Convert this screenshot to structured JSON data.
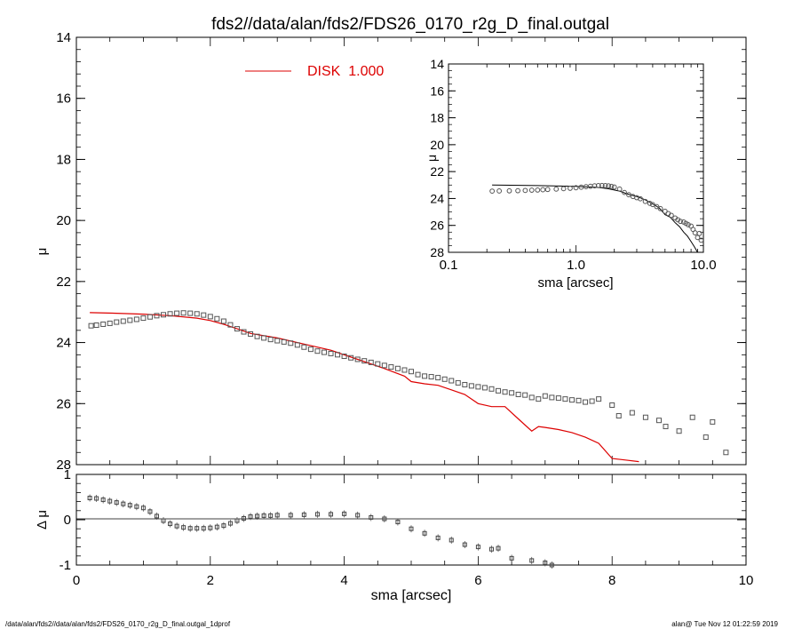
{
  "chart_data": [
    {
      "type": "scatter",
      "title": "fds2//data/alan/fds2/FDS26_0170_r2g_D_final.outgal",
      "xlabel": "",
      "ylabel": "μ",
      "xlim": [
        0,
        10
      ],
      "ylim": [
        28,
        14
      ],
      "y_inverted": true,
      "yticks": [
        "14",
        "16",
        "18",
        "20",
        "22",
        "24",
        "26",
        "28"
      ],
      "legend": {
        "label": "DISK  1.000",
        "color": "#dd0000",
        "placement": "top-center"
      },
      "series": [
        {
          "name": "DISK  1.000",
          "kind": "line",
          "color": "#dd0000",
          "x": [
            0.2,
            0.6,
            1.0,
            1.4,
            1.8,
            2.0,
            2.2,
            2.4,
            2.6,
            3.0,
            3.4,
            3.8,
            4.2,
            4.6,
            4.9,
            5.0,
            5.2,
            5.4,
            5.6,
            5.8,
            6.0,
            6.2,
            6.4,
            6.6,
            6.8,
            6.9,
            7.0,
            7.2,
            7.4,
            7.6,
            7.8,
            8.0,
            8.2,
            8.4
          ],
          "y": [
            23.02,
            23.04,
            23.07,
            23.12,
            23.2,
            23.28,
            23.4,
            23.55,
            23.7,
            23.85,
            24.05,
            24.25,
            24.55,
            24.85,
            25.1,
            25.28,
            25.35,
            25.4,
            25.55,
            25.7,
            26.0,
            26.1,
            26.1,
            26.5,
            26.9,
            26.75,
            26.78,
            26.85,
            26.95,
            27.1,
            27.3,
            27.8,
            27.85,
            27.9
          ]
        },
        {
          "name": "",
          "kind": "points",
          "color": "#555555",
          "x": [
            0.22,
            0.3,
            0.4,
            0.5,
            0.6,
            0.7,
            0.8,
            0.9,
            1.0,
            1.1,
            1.2,
            1.3,
            1.4,
            1.5,
            1.6,
            1.7,
            1.8,
            1.9,
            2.0,
            2.1,
            2.2,
            2.3,
            2.4,
            2.5,
            2.6,
            2.7,
            2.8,
            2.9,
            3.0,
            3.1,
            3.2,
            3.3,
            3.4,
            3.5,
            3.6,
            3.7,
            3.8,
            3.9,
            4.0,
            4.1,
            4.2,
            4.3,
            4.4,
            4.5,
            4.6,
            4.7,
            4.8,
            4.9,
            5.0,
            5.1,
            5.2,
            5.3,
            5.4,
            5.5,
            5.6,
            5.7,
            5.8,
            5.9,
            6.0,
            6.1,
            6.2,
            6.3,
            6.4,
            6.5,
            6.6,
            6.7,
            6.8,
            6.9,
            7.0,
            7.1,
            7.2,
            7.3,
            7.4,
            7.5,
            7.6,
            7.7,
            7.8,
            8.0,
            8.1,
            8.3,
            8.5,
            8.7,
            8.8,
            9.0,
            9.2,
            9.4,
            9.5,
            9.7
          ],
          "y": [
            23.45,
            23.43,
            23.4,
            23.37,
            23.33,
            23.3,
            23.27,
            23.24,
            23.2,
            23.16,
            23.12,
            23.09,
            23.06,
            23.04,
            23.03,
            23.04,
            23.06,
            23.1,
            23.15,
            23.22,
            23.3,
            23.42,
            23.55,
            23.65,
            23.72,
            23.8,
            23.85,
            23.9,
            23.94,
            23.98,
            24.02,
            24.08,
            24.15,
            24.22,
            24.28,
            24.32,
            24.36,
            24.4,
            24.45,
            24.5,
            24.55,
            24.6,
            24.65,
            24.7,
            24.75,
            24.8,
            24.85,
            24.9,
            24.95,
            25.05,
            25.1,
            25.12,
            25.15,
            25.2,
            25.25,
            25.32,
            25.38,
            25.42,
            25.45,
            25.48,
            25.52,
            25.58,
            25.62,
            25.65,
            25.7,
            25.72,
            25.8,
            25.85,
            25.75,
            25.8,
            25.82,
            25.85,
            25.88,
            25.9,
            25.95,
            25.92,
            25.85,
            26.05,
            26.4,
            26.3,
            26.45,
            26.55,
            26.75,
            26.9,
            26.45,
            27.1,
            26.6,
            27.6
          ]
        }
      ]
    },
    {
      "type": "scatter",
      "title": "",
      "xlabel": "sma [arcsec]",
      "ylabel": "Δ μ",
      "xlim": [
        0,
        10
      ],
      "ylim": [
        -1,
        1
      ],
      "xticks": [
        "0",
        "2",
        "4",
        "6",
        "8",
        "10"
      ],
      "yticks": [
        "1",
        "0",
        "-1"
      ],
      "grid": false,
      "series": [
        {
          "name": "",
          "kind": "points",
          "color": "#444444",
          "x": [
            0.2,
            0.3,
            0.4,
            0.5,
            0.6,
            0.7,
            0.8,
            0.9,
            1.0,
            1.1,
            1.2,
            1.3,
            1.4,
            1.5,
            1.6,
            1.7,
            1.8,
            1.9,
            2.0,
            2.1,
            2.2,
            2.3,
            2.4,
            2.5,
            2.6,
            2.7,
            2.8,
            2.9,
            3.0,
            3.2,
            3.4,
            3.6,
            3.8,
            4.0,
            4.2,
            4.4,
            4.6,
            4.8,
            5.0,
            5.2,
            5.4,
            5.6,
            5.8,
            6.0,
            6.2,
            6.3,
            6.5,
            6.8,
            7.0,
            7.1
          ],
          "y": [
            0.48,
            0.47,
            0.44,
            0.41,
            0.38,
            0.35,
            0.32,
            0.29,
            0.26,
            0.18,
            0.08,
            -0.02,
            -0.09,
            -0.14,
            -0.17,
            -0.19,
            -0.19,
            -0.19,
            -0.18,
            -0.16,
            -0.13,
            -0.08,
            -0.02,
            0.03,
            0.07,
            0.08,
            0.09,
            0.09,
            0.1,
            0.1,
            0.11,
            0.12,
            0.12,
            0.13,
            0.1,
            0.05,
            0.02,
            -0.05,
            -0.2,
            -0.3,
            -0.4,
            -0.45,
            -0.55,
            -0.6,
            -0.65,
            -0.63,
            -0.85,
            -0.9,
            -0.95,
            -1.0
          ]
        }
      ]
    },
    {
      "type": "scatter",
      "title": "",
      "xlabel": "sma [arcsec]",
      "ylabel": "μ",
      "x_scale": "log",
      "xlim": [
        0.1,
        10
      ],
      "ylim": [
        28,
        14
      ],
      "y_inverted": true,
      "xticks": [
        "0.1",
        "1.0",
        "10.0"
      ],
      "yticks": [
        "14",
        "16",
        "18",
        "20",
        "22",
        "24",
        "26",
        "28"
      ],
      "series": [
        {
          "name": "",
          "kind": "line",
          "color": "#000000",
          "x": [
            0.22,
            0.5,
            1.0,
            1.5,
            1.8,
            2.2,
            2.6,
            3.0,
            3.5,
            4.0,
            4.5,
            5.0,
            5.5,
            6.0,
            6.5,
            7.0,
            7.5,
            8.0,
            8.5,
            9.0,
            9.5
          ],
          "y": [
            23.0,
            23.04,
            23.1,
            23.18,
            23.28,
            23.45,
            23.7,
            23.85,
            24.1,
            24.4,
            24.7,
            25.2,
            25.4,
            25.8,
            26.1,
            26.5,
            26.8,
            27.2,
            27.6,
            28.0,
            28.0
          ]
        },
        {
          "name": "",
          "kind": "points",
          "color": "#555555",
          "x": [
            0.22,
            0.25,
            0.3,
            0.35,
            0.4,
            0.45,
            0.5,
            0.55,
            0.6,
            0.7,
            0.8,
            0.9,
            1.0,
            1.1,
            1.2,
            1.3,
            1.4,
            1.5,
            1.6,
            1.7,
            1.8,
            1.9,
            2.0,
            2.2,
            2.4,
            2.6,
            2.8,
            3.0,
            3.2,
            3.5,
            3.8,
            4.0,
            4.3,
            4.6,
            5.0,
            5.3,
            5.6,
            6.0,
            6.3,
            6.6,
            7.0,
            7.3,
            7.6,
            8.0,
            8.3,
            8.6,
            9.0,
            9.3,
            9.6
          ],
          "y": [
            23.45,
            23.44,
            23.43,
            23.42,
            23.4,
            23.38,
            23.37,
            23.35,
            23.33,
            23.3,
            23.27,
            23.24,
            23.2,
            23.16,
            23.12,
            23.09,
            23.06,
            23.04,
            23.03,
            23.04,
            23.06,
            23.1,
            23.15,
            23.3,
            23.55,
            23.72,
            23.85,
            23.94,
            24.02,
            24.22,
            24.36,
            24.45,
            24.6,
            24.75,
            24.95,
            25.12,
            25.25,
            25.45,
            25.58,
            25.7,
            25.75,
            25.85,
            25.95,
            26.05,
            26.3,
            26.55,
            26.9,
            26.6,
            27.1
          ]
        }
      ]
    }
  ],
  "footer": {
    "left": "/data/alan/fds2//data/alan/fds2/FDS26_0170_r2g_D_final.outgal_1dprof",
    "right": "alan@  Tue Nov 12 01:22:59 2019"
  }
}
